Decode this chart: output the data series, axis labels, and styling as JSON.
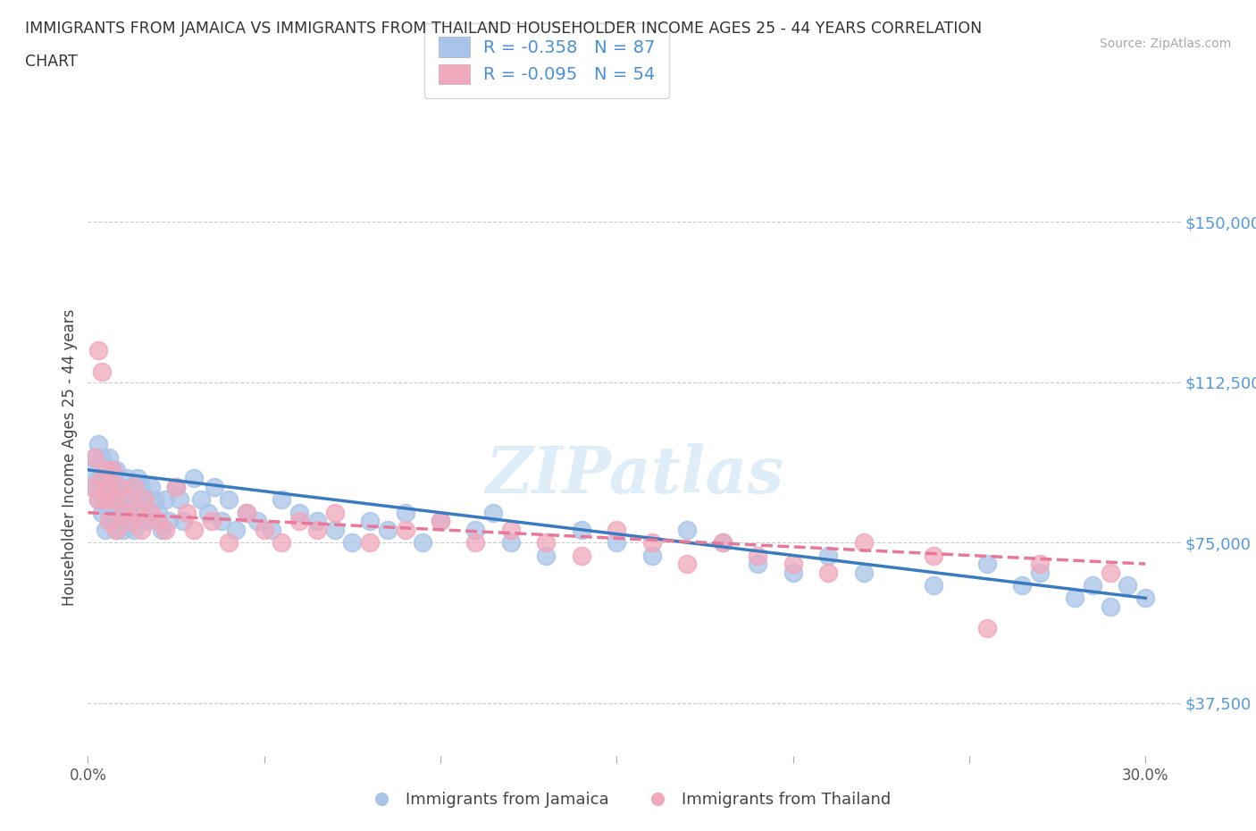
{
  "title_line1": "IMMIGRANTS FROM JAMAICA VS IMMIGRANTS FROM THAILAND HOUSEHOLDER INCOME AGES 25 - 44 YEARS CORRELATION",
  "title_line2": "CHART",
  "source": "Source: ZipAtlas.com",
  "ylabel": "Householder Income Ages 25 - 44 years",
  "xlim": [
    0.0,
    0.31
  ],
  "ylim": [
    25000,
    165000
  ],
  "yticks": [
    37500,
    75000,
    112500,
    150000
  ],
  "ytick_labels": [
    "$37,500",
    "$75,000",
    "$112,500",
    "$150,000"
  ],
  "xticks": [
    0.0,
    0.05,
    0.1,
    0.15,
    0.2,
    0.25,
    0.3
  ],
  "xtick_labels": [
    "0.0%",
    "",
    "",
    "",
    "",
    "",
    "30.0%"
  ],
  "background_color": "#ffffff",
  "jamaica_color": "#a8c4e8",
  "thailand_color": "#f0a8bc",
  "jamaica_line_color": "#3a7abf",
  "thailand_line_color": "#e87898",
  "r_jamaica": -0.358,
  "n_jamaica": 87,
  "r_thailand": -0.095,
  "n_thailand": 54,
  "legend_label_jamaica": "Immigrants from Jamaica",
  "legend_label_thailand": "Immigrants from Thailand",
  "watermark": "ZIPatlas",
  "jamaica_x": [
    0.001,
    0.002,
    0.002,
    0.003,
    0.003,
    0.003,
    0.004,
    0.004,
    0.004,
    0.005,
    0.005,
    0.005,
    0.006,
    0.006,
    0.006,
    0.007,
    0.007,
    0.007,
    0.008,
    0.008,
    0.008,
    0.009,
    0.009,
    0.01,
    0.01,
    0.011,
    0.011,
    0.012,
    0.012,
    0.013,
    0.013,
    0.014,
    0.015,
    0.015,
    0.016,
    0.017,
    0.018,
    0.019,
    0.02,
    0.021,
    0.022,
    0.023,
    0.025,
    0.026,
    0.027,
    0.03,
    0.032,
    0.034,
    0.036,
    0.038,
    0.04,
    0.042,
    0.045,
    0.048,
    0.052,
    0.055,
    0.06,
    0.065,
    0.07,
    0.075,
    0.08,
    0.085,
    0.09,
    0.095,
    0.1,
    0.11,
    0.115,
    0.12,
    0.13,
    0.14,
    0.15,
    0.16,
    0.17,
    0.18,
    0.19,
    0.2,
    0.21,
    0.22,
    0.24,
    0.255,
    0.265,
    0.27,
    0.28,
    0.285,
    0.29,
    0.295,
    0.3
  ],
  "jamaica_y": [
    92000,
    88000,
    95000,
    85000,
    90000,
    98000,
    82000,
    88000,
    95000,
    85000,
    90000,
    78000,
    88000,
    82000,
    95000,
    80000,
    88000,
    92000,
    85000,
    78000,
    92000,
    88000,
    82000,
    85000,
    78000,
    90000,
    82000,
    88000,
    80000,
    85000,
    78000,
    90000,
    82000,
    88000,
    85000,
    80000,
    88000,
    85000,
    82000,
    78000,
    85000,
    80000,
    88000,
    85000,
    80000,
    90000,
    85000,
    82000,
    88000,
    80000,
    85000,
    78000,
    82000,
    80000,
    78000,
    85000,
    82000,
    80000,
    78000,
    75000,
    80000,
    78000,
    82000,
    75000,
    80000,
    78000,
    82000,
    75000,
    72000,
    78000,
    75000,
    72000,
    78000,
    75000,
    70000,
    68000,
    72000,
    68000,
    65000,
    70000,
    65000,
    68000,
    62000,
    65000,
    60000,
    65000,
    62000
  ],
  "thailand_x": [
    0.001,
    0.002,
    0.003,
    0.003,
    0.004,
    0.004,
    0.005,
    0.005,
    0.006,
    0.006,
    0.007,
    0.007,
    0.008,
    0.009,
    0.01,
    0.011,
    0.012,
    0.013,
    0.014,
    0.015,
    0.016,
    0.018,
    0.02,
    0.022,
    0.025,
    0.028,
    0.03,
    0.035,
    0.04,
    0.045,
    0.05,
    0.055,
    0.06,
    0.065,
    0.07,
    0.08,
    0.09,
    0.1,
    0.11,
    0.12,
    0.13,
    0.14,
    0.15,
    0.16,
    0.17,
    0.18,
    0.19,
    0.2,
    0.21,
    0.22,
    0.24,
    0.255,
    0.27,
    0.29
  ],
  "thailand_y": [
    88000,
    95000,
    85000,
    120000,
    90000,
    115000,
    85000,
    92000,
    88000,
    80000,
    85000,
    92000,
    78000,
    88000,
    82000,
    85000,
    80000,
    88000,
    82000,
    78000,
    85000,
    82000,
    80000,
    78000,
    88000,
    82000,
    78000,
    80000,
    75000,
    82000,
    78000,
    75000,
    80000,
    78000,
    82000,
    75000,
    78000,
    80000,
    75000,
    78000,
    75000,
    72000,
    78000,
    75000,
    70000,
    75000,
    72000,
    70000,
    68000,
    75000,
    72000,
    55000,
    70000,
    68000
  ]
}
